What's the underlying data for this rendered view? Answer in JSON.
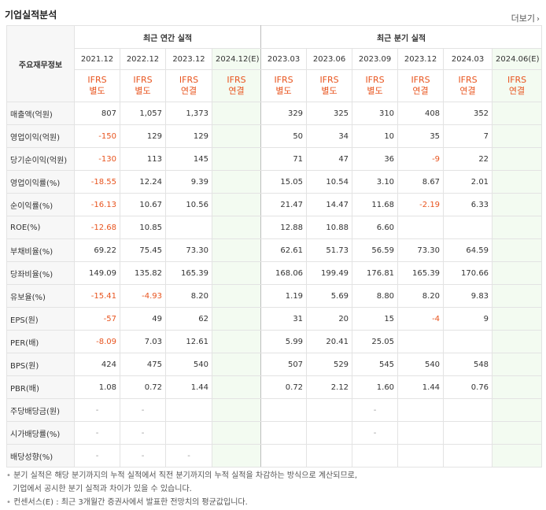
{
  "title": "기업실적분석",
  "more_label": "더보기",
  "more_icon": "chevron-right-icon",
  "header": {
    "row_head": "주요재무정보",
    "annual_group": "최근 연간 실적",
    "quarter_group": "최근 분기 실적",
    "annual_periods": [
      "2021.12",
      "2022.12",
      "2023.12",
      "2024.12(E)"
    ],
    "quarter_periods": [
      "2023.03",
      "2023.06",
      "2023.09",
      "2023.12",
      "2024.03",
      "2024.06(E)"
    ],
    "annual_basis": [
      [
        "IFRS",
        "별도"
      ],
      [
        "IFRS",
        "별도"
      ],
      [
        "IFRS",
        "연결"
      ],
      [
        "IFRS",
        "연결"
      ]
    ],
    "quarter_basis": [
      [
        "IFRS",
        "별도"
      ],
      [
        "IFRS",
        "별도"
      ],
      [
        "IFRS",
        "별도"
      ],
      [
        "IFRS",
        "연결"
      ],
      [
        "IFRS",
        "연결"
      ],
      [
        "IFRS",
        "연결"
      ]
    ]
  },
  "rows": [
    {
      "label": "매출액(억원)",
      "annual": [
        "807",
        "1,057",
        "1,373",
        ""
      ],
      "quarter": [
        "329",
        "325",
        "310",
        "408",
        "352",
        ""
      ]
    },
    {
      "label": "영업이익(억원)",
      "annual": [
        "-150",
        "129",
        "129",
        ""
      ],
      "quarter": [
        "50",
        "34",
        "10",
        "35",
        "7",
        ""
      ]
    },
    {
      "label": "당기순이익(억원)",
      "annual": [
        "-130",
        "113",
        "145",
        ""
      ],
      "quarter": [
        "71",
        "47",
        "36",
        "-9",
        "22",
        ""
      ]
    },
    {
      "label": "영업이익률(%)",
      "annual": [
        "-18.55",
        "12.24",
        "9.39",
        ""
      ],
      "quarter": [
        "15.05",
        "10.54",
        "3.10",
        "8.67",
        "2.01",
        ""
      ]
    },
    {
      "label": "순이익률(%)",
      "annual": [
        "-16.13",
        "10.67",
        "10.56",
        ""
      ],
      "quarter": [
        "21.47",
        "14.47",
        "11.68",
        "-2.19",
        "6.33",
        ""
      ]
    },
    {
      "label": "ROE(%)",
      "annual": [
        "-12.68",
        "10.85",
        "",
        ""
      ],
      "quarter": [
        "12.88",
        "10.88",
        "6.60",
        "",
        "",
        ""
      ]
    },
    {
      "label": "부채비율(%)",
      "annual": [
        "69.22",
        "75.45",
        "73.30",
        ""
      ],
      "quarter": [
        "62.61",
        "51.73",
        "56.59",
        "73.30",
        "64.59",
        ""
      ]
    },
    {
      "label": "당좌비율(%)",
      "annual": [
        "149.09",
        "135.82",
        "165.39",
        ""
      ],
      "quarter": [
        "168.06",
        "199.49",
        "176.81",
        "165.39",
        "170.66",
        ""
      ]
    },
    {
      "label": "유보율(%)",
      "annual": [
        "-15.41",
        "-4.93",
        "8.20",
        ""
      ],
      "quarter": [
        "1.19",
        "5.69",
        "8.80",
        "8.20",
        "9.83",
        ""
      ]
    },
    {
      "label": "EPS(원)",
      "annual": [
        "-57",
        "49",
        "62",
        ""
      ],
      "quarter": [
        "31",
        "20",
        "15",
        "-4",
        "9",
        ""
      ]
    },
    {
      "label": "PER(배)",
      "annual": [
        "-8.09",
        "7.03",
        "12.61",
        ""
      ],
      "quarter": [
        "5.99",
        "20.41",
        "25.05",
        "",
        "",
        ""
      ]
    },
    {
      "label": "BPS(원)",
      "annual": [
        "424",
        "475",
        "540",
        ""
      ],
      "quarter": [
        "507",
        "529",
        "545",
        "540",
        "548",
        ""
      ]
    },
    {
      "label": "PBR(배)",
      "annual": [
        "1.08",
        "0.72",
        "1.44",
        ""
      ],
      "quarter": [
        "0.72",
        "2.12",
        "1.60",
        "1.44",
        "0.76",
        ""
      ]
    },
    {
      "label": "주당배당금(원)",
      "annual": [
        "-",
        "-",
        "",
        ""
      ],
      "quarter": [
        "",
        "",
        "-",
        "",
        "",
        ""
      ]
    },
    {
      "label": "시가배당률(%)",
      "annual": [
        "-",
        "-",
        "",
        ""
      ],
      "quarter": [
        "",
        "",
        "-",
        "",
        "",
        ""
      ]
    },
    {
      "label": "배당성향(%)",
      "annual": [
        "-",
        "-",
        "-",
        ""
      ],
      "quarter": [
        "",
        "",
        "",
        "",
        "",
        ""
      ]
    }
  ],
  "notes": [
    "분기 실적은 해당 분기까지의 누적 실적에서 직전 분기까지의 누적 실적을 차감하는 방식으로 계산되므로,",
    "기업에서 공시한 분기 실적과 차이가 있을 수 있습니다.",
    "컨센서스(E) : 최근 3개월간 증권사에서 발표한 전망치의 평균값입니다."
  ],
  "colors": {
    "accent": "#e8541e",
    "estimate_bg": "#f3fbf1",
    "label_bg": "#f7f7f7"
  }
}
